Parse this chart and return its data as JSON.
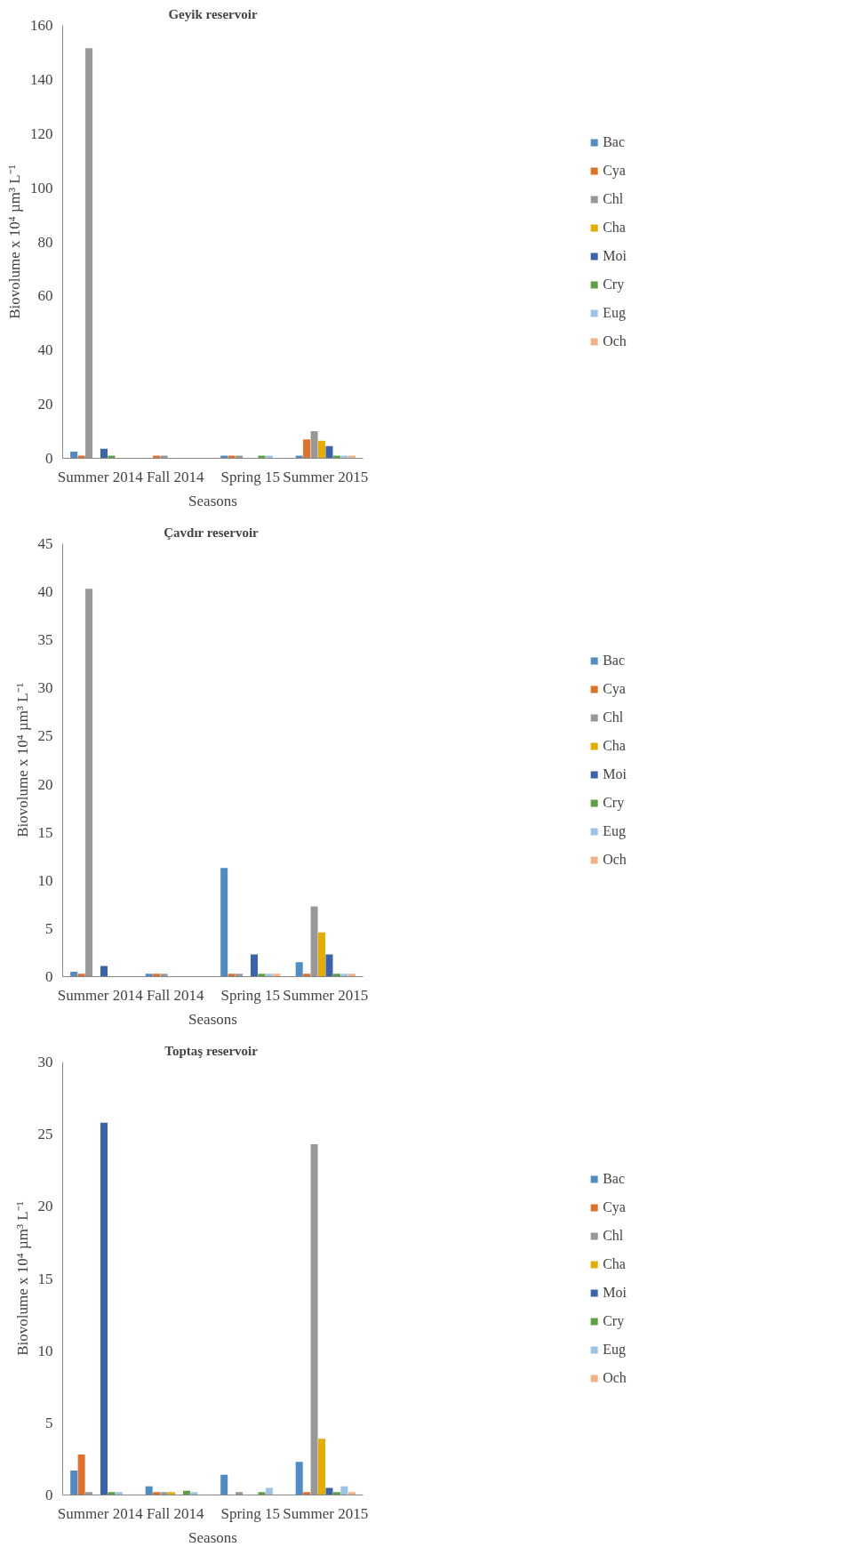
{
  "chart_data": [
    {
      "type": "bar",
      "title": "Geyik reservoir",
      "xlabel": "Seasons",
      "ylabel": "Biovolume x 10⁴ µm³ L⁻¹",
      "categories": [
        "Summer 2014",
        "Fall 2014",
        "Spring 15",
        "Summer 2015"
      ],
      "ylim": [
        0,
        160
      ],
      "yticks": [
        0,
        20,
        40,
        60,
        80,
        100,
        120,
        140,
        160
      ],
      "grid": false,
      "legend": "right",
      "series": [
        {
          "name": "Bac",
          "color": "#4f8bc4",
          "values": [
            2.5,
            0,
            1,
            1
          ]
        },
        {
          "name": "Cya",
          "color": "#e0702a",
          "values": [
            1,
            1,
            1,
            7
          ]
        },
        {
          "name": "Chl",
          "color": "#989898",
          "values": [
            151.5,
            1,
            1,
            10
          ]
        },
        {
          "name": "Cha",
          "color": "#e6ac00",
          "values": [
            0,
            0,
            0,
            6.5
          ]
        },
        {
          "name": "Moi",
          "color": "#3a62ad",
          "values": [
            3.5,
            0,
            0,
            4.5
          ]
        },
        {
          "name": "Cry",
          "color": "#5ea040",
          "values": [
            1,
            0,
            1,
            1
          ]
        },
        {
          "name": "Eug",
          "color": "#9dc3e6",
          "values": [
            0,
            0,
            1,
            1
          ]
        },
        {
          "name": "Och",
          "color": "#f4b183",
          "values": [
            0,
            0,
            0,
            1
          ]
        }
      ]
    },
    {
      "type": "bar",
      "title": "Çavdır  reservoir",
      "xlabel": "Seasons",
      "ylabel": "Biovolume x 10⁴ µm³ L⁻¹",
      "categories": [
        "Summer 2014",
        "Fall 2014",
        "Spring 15",
        "Summer 2015"
      ],
      "ylim": [
        0,
        45
      ],
      "yticks": [
        0,
        5,
        10,
        15,
        20,
        25,
        30,
        35,
        40,
        45
      ],
      "grid": false,
      "legend": "right",
      "series": [
        {
          "name": "Bac",
          "color": "#4f8bc4",
          "values": [
            0.5,
            0.3,
            11.3,
            1.5
          ]
        },
        {
          "name": "Cya",
          "color": "#e0702a",
          "values": [
            0.3,
            0.3,
            0.3,
            0.3
          ]
        },
        {
          "name": "Chl",
          "color": "#989898",
          "values": [
            40.3,
            0.3,
            0.3,
            7.3
          ]
        },
        {
          "name": "Cha",
          "color": "#e6ac00",
          "values": [
            0,
            0,
            0,
            4.6
          ]
        },
        {
          "name": "Moi",
          "color": "#3a62ad",
          "values": [
            1.1,
            0,
            2.3,
            2.3
          ]
        },
        {
          "name": "Cry",
          "color": "#5ea040",
          "values": [
            0,
            0,
            0.3,
            0.3
          ]
        },
        {
          "name": "Eug",
          "color": "#9dc3e6",
          "values": [
            0,
            0,
            0.3,
            0.3
          ]
        },
        {
          "name": "Och",
          "color": "#f4b183",
          "values": [
            0,
            0,
            0.3,
            0.3
          ]
        }
      ]
    },
    {
      "type": "bar",
      "title": "Toptaş  reservoir",
      "xlabel": "Seasons",
      "ylabel": "Biovolume x 10⁴ µm³ L⁻¹",
      "categories": [
        "Summer 2014",
        "Fall 2014",
        "Spring 15",
        "Summer 2015"
      ],
      "ylim": [
        0,
        30
      ],
      "yticks": [
        0,
        5,
        10,
        15,
        20,
        25,
        30
      ],
      "grid": false,
      "legend": "right",
      "series": [
        {
          "name": "Bac",
          "color": "#4f8bc4",
          "values": [
            1.7,
            0.6,
            1.4,
            2.3
          ]
        },
        {
          "name": "Cya",
          "color": "#e0702a",
          "values": [
            2.8,
            0.2,
            0,
            0.2
          ]
        },
        {
          "name": "Chl",
          "color": "#989898",
          "values": [
            0.2,
            0.2,
            0.2,
            24.3
          ]
        },
        {
          "name": "Cha",
          "color": "#e6ac00",
          "values": [
            0,
            0.2,
            0,
            3.9
          ]
        },
        {
          "name": "Moi",
          "color": "#3a62ad",
          "values": [
            25.8,
            0,
            0,
            0.5
          ]
        },
        {
          "name": "Cry",
          "color": "#5ea040",
          "values": [
            0.2,
            0.3,
            0.2,
            0.2
          ]
        },
        {
          "name": "Eug",
          "color": "#9dc3e6",
          "values": [
            0.2,
            0.2,
            0.5,
            0.6
          ]
        },
        {
          "name": "Och",
          "color": "#f4b183",
          "values": [
            0,
            0,
            0,
            0.2
          ]
        }
      ]
    }
  ]
}
